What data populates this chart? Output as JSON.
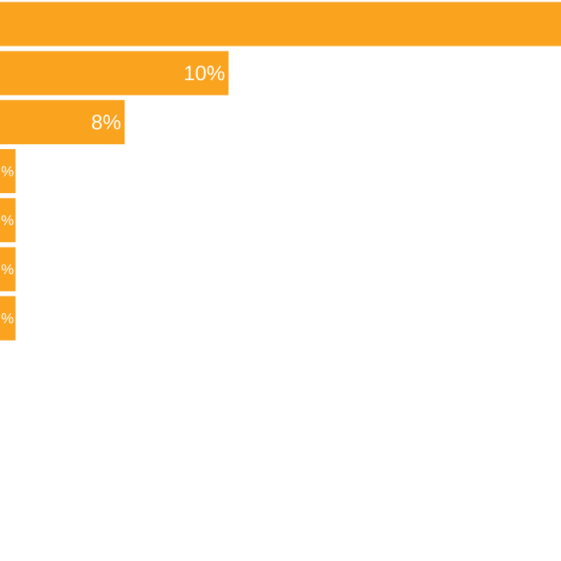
{
  "chart_data": {
    "type": "bar",
    "orientation": "horizontal",
    "categories": [
      null,
      null,
      null,
      null,
      null,
      null,
      null
    ],
    "values": [
      16.4,
      10,
      8,
      5.9,
      5.9,
      5.9,
      5.9
    ],
    "value_labels": [
      null,
      "10%",
      "8%",
      "%",
      "%",
      "%",
      "%"
    ],
    "xlim": [
      5.6,
      16.4
    ],
    "color": "#f9a31f"
  }
}
